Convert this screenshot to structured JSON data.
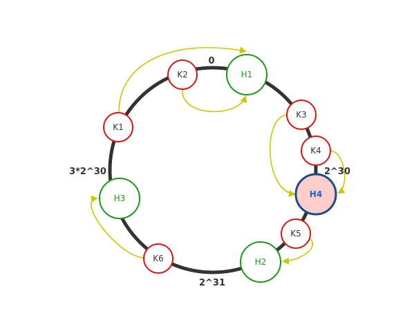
{
  "ring": {
    "labels": {
      "top": "0",
      "right": "2^30",
      "bottom": "2^31",
      "left": "3*2^30"
    }
  },
  "nodes": {
    "hosts": [
      {
        "id": "H1",
        "label": "H1"
      },
      {
        "id": "H2",
        "label": "H2"
      },
      {
        "id": "H3",
        "label": "H3"
      },
      {
        "id": "H4",
        "label": "H4",
        "highlighted": true
      }
    ],
    "keys": [
      {
        "id": "K1",
        "label": "K1"
      },
      {
        "id": "K2",
        "label": "K2"
      },
      {
        "id": "K3",
        "label": "K3"
      },
      {
        "id": "K4",
        "label": "K4"
      },
      {
        "id": "K5",
        "label": "K5"
      },
      {
        "id": "K6",
        "label": "K6"
      }
    ]
  },
  "mappings": [
    {
      "from": "K1",
      "to": "H1"
    },
    {
      "from": "K2",
      "to": "H1"
    },
    {
      "from": "K3",
      "to": "H4"
    },
    {
      "from": "K4",
      "to": "H4"
    },
    {
      "from": "K5",
      "to": "H2"
    },
    {
      "from": "K6",
      "to": "H3"
    }
  ],
  "colors": {
    "ring": "#333333",
    "host_stroke": "#1a9a1a",
    "host_text": "#1a9a1a",
    "key_stroke": "#e01010",
    "key_text": "#333333",
    "highlight_fill": "#ffcccc",
    "highlight_stroke": "#1a4a8a",
    "highlight_text": "#1a66cc",
    "arrow": "#c8c800"
  }
}
